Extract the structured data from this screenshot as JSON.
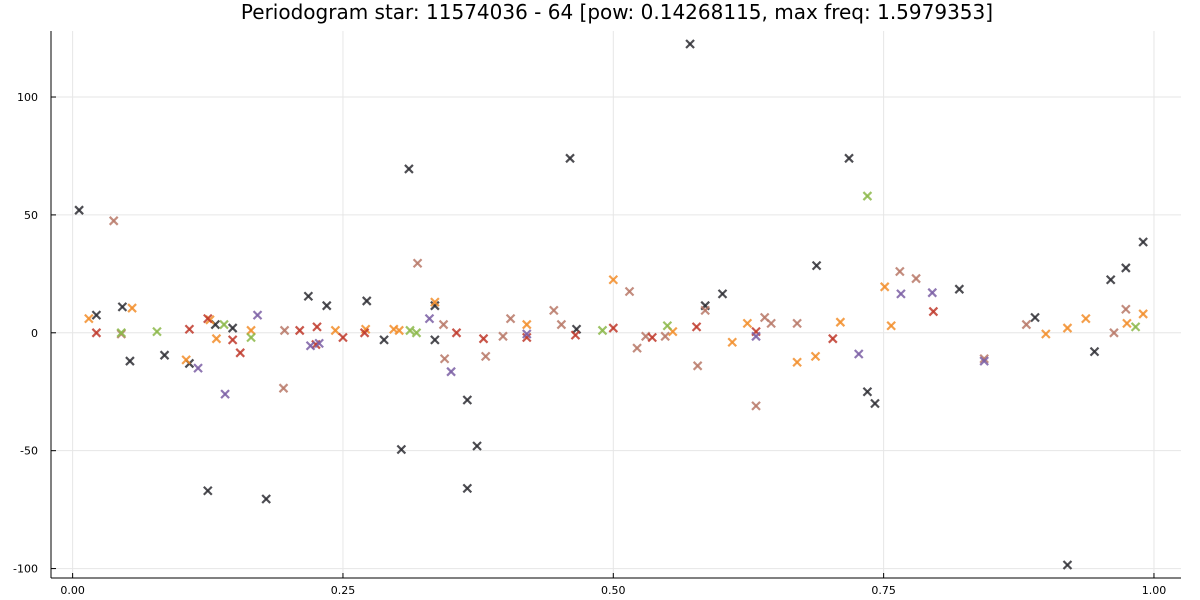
{
  "chart_data": {
    "type": "scatter",
    "title": "Periodogram star: 11574036 - 64 [pow: 0.14268115, max freq: 1.5979353]",
    "xlabel": "",
    "ylabel": "",
    "xlim": [
      -0.02,
      1.025
    ],
    "ylim": [
      -104,
      128
    ],
    "xticks": [
      0.0,
      0.25,
      0.5,
      0.75,
      1.0
    ],
    "xtick_labels": [
      "0.00",
      "0.25",
      "0.50",
      "0.75",
      "1.00"
    ],
    "yticks": [
      -100,
      -50,
      0,
      50,
      100
    ],
    "ytick_labels": [
      "-100",
      "-50",
      "0",
      "50",
      "100"
    ],
    "grid": true,
    "marker": "x",
    "legend": "none",
    "series": [
      {
        "color": "#2f2f35",
        "points": [
          [
            0.006,
            52
          ],
          [
            0.022,
            7.5
          ],
          [
            0.046,
            11
          ],
          [
            0.053,
            -12
          ],
          [
            0.085,
            -9.5
          ],
          [
            0.108,
            -13
          ],
          [
            0.125,
            -67
          ],
          [
            0.132,
            3.5
          ],
          [
            0.148,
            2
          ],
          [
            0.179,
            -70.5
          ],
          [
            0.218,
            15.5
          ],
          [
            0.235,
            11.5
          ],
          [
            0.272,
            13.5
          ],
          [
            0.288,
            -3
          ],
          [
            0.304,
            -49.5
          ],
          [
            0.311,
            69.5
          ],
          [
            0.335,
            11.5
          ],
          [
            0.335,
            -3
          ],
          [
            0.365,
            -28.5
          ],
          [
            0.365,
            -66
          ],
          [
            0.374,
            -48
          ],
          [
            0.46,
            74
          ],
          [
            0.466,
            1.5
          ],
          [
            0.571,
            122.5
          ],
          [
            0.585,
            11.5
          ],
          [
            0.601,
            16.5
          ],
          [
            0.688,
            28.5
          ],
          [
            0.718,
            74
          ],
          [
            0.735,
            -25
          ],
          [
            0.742,
            -30
          ],
          [
            0.82,
            18.5
          ],
          [
            0.89,
            6.5
          ],
          [
            0.92,
            -98.5
          ],
          [
            0.945,
            -8
          ],
          [
            0.96,
            22.5
          ],
          [
            0.974,
            27.5
          ],
          [
            0.99,
            38.5
          ]
        ]
      },
      {
        "color": "#b87968",
        "points": [
          [
            0.038,
            47.5
          ],
          [
            0.045,
            -0.5
          ],
          [
            0.195,
            -23.5
          ],
          [
            0.196,
            1
          ],
          [
            0.319,
            29.5
          ],
          [
            0.343,
            3.5
          ],
          [
            0.344,
            -11
          ],
          [
            0.382,
            -10
          ],
          [
            0.398,
            -1.5
          ],
          [
            0.405,
            6
          ],
          [
            0.445,
            9.5
          ],
          [
            0.452,
            3.5
          ],
          [
            0.515,
            17.5
          ],
          [
            0.522,
            -6.5
          ],
          [
            0.53,
            -1.5
          ],
          [
            0.548,
            -1.5
          ],
          [
            0.578,
            -14
          ],
          [
            0.585,
            9.5
          ],
          [
            0.632,
            -31
          ],
          [
            0.64,
            6.5
          ],
          [
            0.646,
            4
          ],
          [
            0.67,
            4
          ],
          [
            0.765,
            26
          ],
          [
            0.78,
            23
          ],
          [
            0.843,
            -11
          ],
          [
            0.882,
            3.5
          ],
          [
            0.963,
            0
          ],
          [
            0.974,
            10
          ]
        ]
      },
      {
        "color": "#f28e2b",
        "points": [
          [
            0.015,
            6
          ],
          [
            0.055,
            10.5
          ],
          [
            0.105,
            -11.5
          ],
          [
            0.127,
            5.5
          ],
          [
            0.133,
            -2.5
          ],
          [
            0.165,
            1
          ],
          [
            0.243,
            1
          ],
          [
            0.271,
            1.5
          ],
          [
            0.297,
            1.5
          ],
          [
            0.302,
            1
          ],
          [
            0.335,
            13
          ],
          [
            0.42,
            3.5
          ],
          [
            0.5,
            22.5
          ],
          [
            0.555,
            0.5
          ],
          [
            0.61,
            -4
          ],
          [
            0.624,
            4
          ],
          [
            0.67,
            -12.5
          ],
          [
            0.687,
            -10
          ],
          [
            0.71,
            4.5
          ],
          [
            0.751,
            19.5
          ],
          [
            0.757,
            3
          ],
          [
            0.9,
            -0.5
          ],
          [
            0.92,
            2
          ],
          [
            0.937,
            6
          ],
          [
            0.975,
            4
          ],
          [
            0.99,
            8
          ]
        ]
      },
      {
        "color": "#c0392b",
        "points": [
          [
            0.022,
            0
          ],
          [
            0.108,
            1.5
          ],
          [
            0.125,
            6
          ],
          [
            0.148,
            -3
          ],
          [
            0.155,
            -8.5
          ],
          [
            0.21,
            1
          ],
          [
            0.225,
            -5
          ],
          [
            0.226,
            2.5
          ],
          [
            0.25,
            -2
          ],
          [
            0.27,
            0
          ],
          [
            0.355,
            0
          ],
          [
            0.38,
            -2.5
          ],
          [
            0.42,
            -2
          ],
          [
            0.465,
            -1
          ],
          [
            0.5,
            2
          ],
          [
            0.536,
            -2
          ],
          [
            0.577,
            2.5
          ],
          [
            0.632,
            0.5
          ],
          [
            0.703,
            -2.5
          ],
          [
            0.796,
            9
          ]
        ]
      },
      {
        "color": "#7b5fa4",
        "points": [
          [
            0.116,
            -15
          ],
          [
            0.141,
            -26
          ],
          [
            0.171,
            7.5
          ],
          [
            0.22,
            -5.5
          ],
          [
            0.228,
            -4.5
          ],
          [
            0.33,
            6
          ],
          [
            0.35,
            -16.5
          ],
          [
            0.42,
            -0.5
          ],
          [
            0.632,
            -1.5
          ],
          [
            0.727,
            -9
          ],
          [
            0.766,
            16.5
          ],
          [
            0.795,
            17
          ],
          [
            0.843,
            -12
          ]
        ]
      },
      {
        "color": "#8cb84a",
        "points": [
          [
            0.045,
            0
          ],
          [
            0.078,
            0.5
          ],
          [
            0.14,
            3.5
          ],
          [
            0.165,
            -2
          ],
          [
            0.312,
            1
          ],
          [
            0.318,
            0
          ],
          [
            0.49,
            1
          ],
          [
            0.55,
            3
          ],
          [
            0.735,
            58
          ],
          [
            0.983,
            2.5
          ]
        ]
      }
    ]
  }
}
